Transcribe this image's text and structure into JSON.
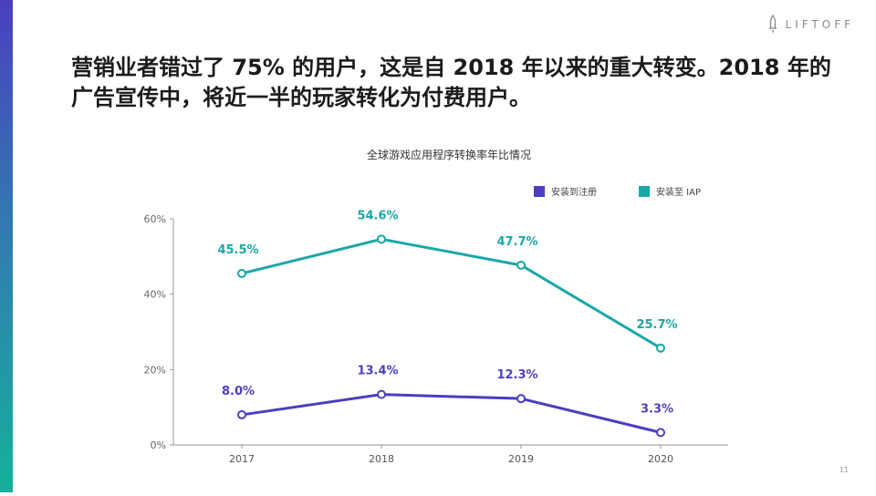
{
  "headline": "营销业者错过了 75% 的用户，这是自 2018 年以来的重大转变。2018 年的广告宣传中，将近一半的玩家转化为付费用户。",
  "logo_text": "LIFTOFF",
  "page_number": "11",
  "colors": {
    "accent_top": "#4b3fbf",
    "accent_bottom": "#16b09a",
    "series_install_to_register": "#4b3fbf",
    "series_install_to_iap": "#1aa7a7",
    "axis": "#9a9a9a",
    "text": "#1b1b1b"
  },
  "chart_data": {
    "type": "line",
    "title": "全球游戏应用程序转换率年比情况",
    "categories": [
      "2017",
      "2018",
      "2019",
      "2020"
    ],
    "series": [
      {
        "name": "安装到注册",
        "values": [
          8.0,
          13.4,
          12.3,
          3.3
        ],
        "labels": [
          "8.0%",
          "13.4%",
          "12.3%",
          "3.3%"
        ],
        "color": "#4b3fbf"
      },
      {
        "name": "安装至 IAP",
        "values": [
          45.5,
          54.6,
          47.7,
          25.7
        ],
        "labels": [
          "45.5%",
          "54.6%",
          "47.7%",
          "25.7%"
        ],
        "color": "#1aa7a7"
      }
    ],
    "yticks": [
      0,
      20,
      40,
      60
    ],
    "ytick_labels": [
      "0%",
      "20%",
      "40%",
      "60%"
    ],
    "ylim": [
      0,
      60
    ],
    "xlabel": "",
    "ylabel": "",
    "legend_position": "top-right",
    "grid": false
  }
}
